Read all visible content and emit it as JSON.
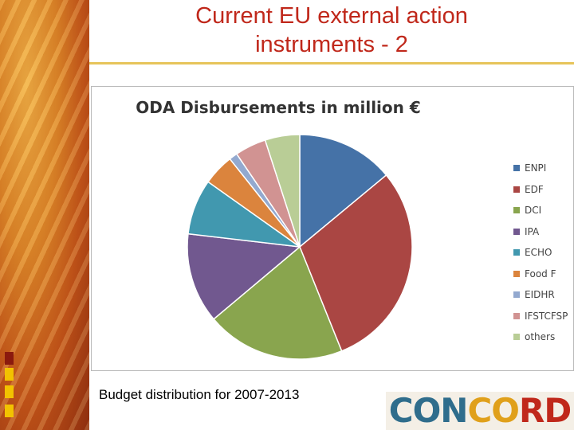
{
  "slide": {
    "title_line1": "Current EU external action",
    "title_line2": "instruments - 2",
    "caption": "Budget distribution for 2007-2013",
    "logo_text": "CONCORD"
  },
  "colors": {
    "title": "#c0281b",
    "sidebar_squares": [
      "#8b1a0e",
      "#f2c200",
      "#f2c200",
      "#f2c200"
    ]
  },
  "chart_data": {
    "type": "pie",
    "title": "ODA Disbursements in million €",
    "legend_position": "right",
    "series": [
      {
        "name": "ENPI",
        "value": 14,
        "color": "#4572a7"
      },
      {
        "name": "EDF",
        "value": 30,
        "color": "#aa4643"
      },
      {
        "name": "DCI",
        "value": 20,
        "color": "#89a54e"
      },
      {
        "name": "IPA",
        "value": 13,
        "color": "#71588f"
      },
      {
        "name": "ECHO",
        "value": 8,
        "color": "#4198af"
      },
      {
        "name": "Food F",
        "value": 4.5,
        "color": "#db843d"
      },
      {
        "name": "EIDHR",
        "value": 1.2,
        "color": "#93a9cf"
      },
      {
        "name": "IFSTCFSP",
        "value": 4.5,
        "color": "#d19392"
      },
      {
        "name": "others",
        "value": 5,
        "color": "#b9cd96"
      }
    ]
  }
}
